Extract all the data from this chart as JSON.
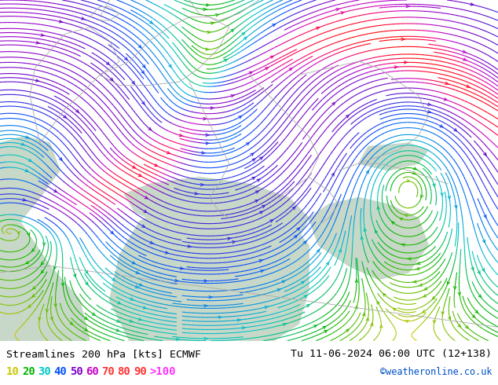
{
  "title_left": "Streamlines 200 hPa [kts] ECMWF",
  "title_right": "Tu 11-06-2024 06:00 UTC (12+138)",
  "credit": "©weatheronline.co.uk",
  "fig_width": 6.34,
  "fig_height": 4.9,
  "dpi": 100,
  "land_color": "#a8d878",
  "sea_color": "#c8d8c8",
  "bottom_bg": "#ffffff",
  "title_fontsize": 9.5,
  "credit_fontsize": 8.5,
  "legend_fontsize": 10,
  "legend_values": [
    "10",
    "20",
    "30",
    "40",
    "50",
    "60",
    "70",
    "80",
    "90",
    ">100"
  ],
  "legend_colors": [
    "#c8c800",
    "#00b400",
    "#00c8c8",
    "#0050ff",
    "#8000c8",
    "#c800c8",
    "#ff3232",
    "#ff3232",
    "#ff3232",
    "#ff32ff"
  ]
}
